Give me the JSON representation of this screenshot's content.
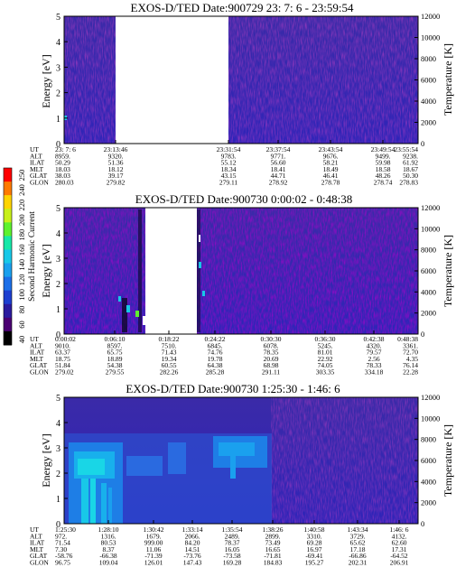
{
  "colorbar": {
    "label": "Second Harmonic Current",
    "ticks": [
      "40",
      "60",
      "80",
      "100",
      "120",
      "140",
      "160",
      "180",
      "200",
      "220",
      "240",
      "250"
    ],
    "colors": [
      "#000000",
      "#4b0072",
      "#2b1b9e",
      "#1d3fd0",
      "#1c6fe8",
      "#1aa0ee",
      "#18c8e8",
      "#17e8a8",
      "#5ef22e",
      "#c8f01a",
      "#ffd400",
      "#ff7a00",
      "#ff0000"
    ]
  },
  "chart_data": [
    {
      "type": "heatmap",
      "title": "EXOS-D/TED   Date:900729  23: 7: 6 - 23:59:54",
      "ylabel": "Energy [eV]",
      "y2label": "Temperature [K]",
      "ylim": [
        0,
        5
      ],
      "y2lim": [
        0,
        12000
      ],
      "yticks": [
        "0",
        "1",
        "2",
        "3",
        "4",
        "5"
      ],
      "y2ticks": [
        "0",
        "2000",
        "4000",
        "6000",
        "8000",
        "10000",
        "12000"
      ],
      "data_gap": [
        "23:13:46",
        "23:31:54"
      ],
      "table": {
        "row_labels": [
          "UT",
          "ALT",
          "ILAT",
          "MLT",
          "GLAT",
          "GLON"
        ],
        "columns": [
          [
            "23: 7: 6",
            "8959.",
            "50.29",
            "18.03",
            "38.03",
            "280.03"
          ],
          [
            "23:13:46",
            "9320.",
            "51.36",
            "18.12",
            "39.17",
            "279.82"
          ],
          [
            "23:31:54",
            "9783.",
            "55.12",
            "18.34",
            "43.15",
            "279.11"
          ],
          [
            "23:37:54",
            "9771.",
            "56.60",
            "18.41",
            "44.71",
            "278.92"
          ],
          [
            "23:43:54",
            "9676.",
            "58.21",
            "18.49",
            "46.41",
            "278.78"
          ],
          [
            "23:49:54",
            "9499.",
            "59.98",
            "18.58",
            "48.26",
            "278.74"
          ],
          [
            "23:55:54",
            "9238.",
            "61.92",
            "18.67",
            "50.30",
            "278.83"
          ]
        ]
      }
    },
    {
      "type": "heatmap",
      "title": "EXOS-D/TED   Date:900730  0:00:02 - 0:48:38",
      "ylabel": "Energy [eV]",
      "y2label": "Temperature [K]",
      "ylim": [
        0,
        5
      ],
      "y2lim": [
        0,
        12000
      ],
      "yticks": [
        "0",
        "1",
        "2",
        "3",
        "4",
        "5"
      ],
      "y2ticks": [
        "0",
        "2000",
        "4000",
        "6000",
        "8000",
        "10000",
        "12000"
      ],
      "data_gap": [
        "0:06:10",
        "0:18:22"
      ],
      "table": {
        "row_labels": [
          "UT",
          "ALT",
          "ILAT",
          "MLT",
          "GLAT",
          "GLON"
        ],
        "columns": [
          [
            "0:00:02",
            "9010.",
            "63.37",
            "18.75",
            "51.84",
            "279.02"
          ],
          [
            "0:06:10",
            "8597.",
            "65.75",
            "18.89",
            "54.38",
            "279.55"
          ],
          [
            "0:18:22",
            "7510.",
            "71.43",
            "19.34",
            "60.55",
            "282.26"
          ],
          [
            "0:24:22",
            "6845.",
            "74.76",
            "19.78",
            "64.38",
            "285.28"
          ],
          [
            "0:30:30",
            "6078.",
            "78.35",
            "20.69",
            "68.98",
            "291.11"
          ],
          [
            "0:36:30",
            "5245.",
            "81.01",
            "22.92",
            "74.05",
            "303.35"
          ],
          [
            "0:42:38",
            "4320.",
            "79.57",
            "2.56",
            "78.33",
            "334.18"
          ],
          [
            "0:48:38",
            "3361.",
            "72.70",
            "4.35",
            "76.14",
            "22.28"
          ]
        ]
      }
    },
    {
      "type": "heatmap",
      "title": "EXOS-D/TED   Date:900730  1:25:30 - 1:46: 6",
      "ylabel": "Energy [eV]",
      "y2label": "Temperature [K]",
      "ylim": [
        0,
        5
      ],
      "y2lim": [
        0,
        12000
      ],
      "yticks": [
        "0",
        "1",
        "2",
        "3",
        "4",
        "5"
      ],
      "y2ticks": [
        "0",
        "2000",
        "4000",
        "6000",
        "8000",
        "10000",
        "12000"
      ],
      "table": {
        "row_labels": [
          "UT",
          "ALT",
          "ILAT",
          "MLT",
          "GLAT",
          "GLON"
        ],
        "columns": [
          [
            "1:25:30",
            "972.",
            "71.54",
            "7.30",
            "-58.76",
            "96.75"
          ],
          [
            "1:28:10",
            "1316.",
            "80.53",
            "8.37",
            "-66.38",
            "109.04"
          ],
          [
            "1:30:42",
            "1679.",
            "999.00",
            "11.06",
            "-71.39",
            "126.01"
          ],
          [
            "1:33:14",
            "2066.",
            "84.20",
            "14.51",
            "-73.76",
            "147.43"
          ],
          [
            "1:35:54",
            "2489.",
            "78.37",
            "16.05",
            "-73.58",
            "169.28"
          ],
          [
            "1:38:26",
            "2899.",
            "73.49",
            "16.65",
            "-71.81",
            "184.83"
          ],
          [
            "1:40:58",
            "3310.",
            "69.28",
            "16.97",
            "-69.41",
            "195.27"
          ],
          [
            "1:43:34",
            "3729.",
            "65.62",
            "17.18",
            "-66.86",
            "202.31"
          ],
          [
            "1:46: 6",
            "4132.",
            "62.60",
            "17.31",
            "-64.52",
            "206.91"
          ]
        ]
      }
    }
  ]
}
